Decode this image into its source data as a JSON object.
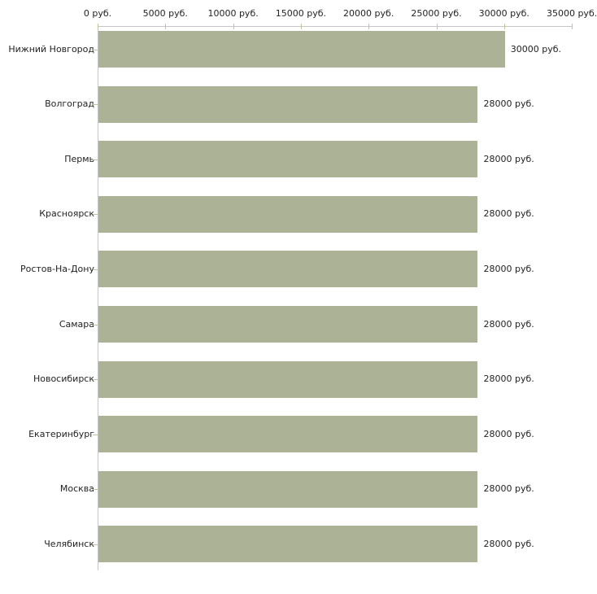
{
  "chart_data": {
    "type": "bar",
    "orientation": "horizontal",
    "title": "",
    "xlabel": "",
    "ylabel": "",
    "categories": [
      "Нижний Новгород",
      "Волгоград",
      "Пермь",
      "Красноярск",
      "Ростов-На-Дону",
      "Самара",
      "Новосибирск",
      "Екатеринбург",
      "Москва",
      "Челябинск"
    ],
    "values": [
      30000,
      28000,
      28000,
      28000,
      28000,
      28000,
      28000,
      28000,
      28000,
      28000
    ],
    "value_labels": [
      "30000 руб.",
      "28000 руб.",
      "28000 руб.",
      "28000 руб.",
      "28000 руб.",
      "28000 руб.",
      "28000 руб.",
      "28000 руб.",
      "28000 руб.",
      "28000 руб."
    ],
    "unit": "руб.",
    "xlim": [
      0,
      35000
    ],
    "x_ticks": [
      0,
      5000,
      10000,
      15000,
      20000,
      25000,
      30000,
      35000
    ],
    "x_tick_labels": [
      "0 руб.",
      "5000 руб.",
      "10000 руб.",
      "15000 руб.",
      "20000 руб.",
      "25000 руб.",
      "30000 руб.",
      "35000 руб."
    ],
    "grid": false,
    "legend": false,
    "colors": {
      "bar": "#abb296",
      "axis": "#c6c6c6",
      "tick": "#bfc59d",
      "text": "#222222",
      "background": "#ffffff"
    }
  }
}
